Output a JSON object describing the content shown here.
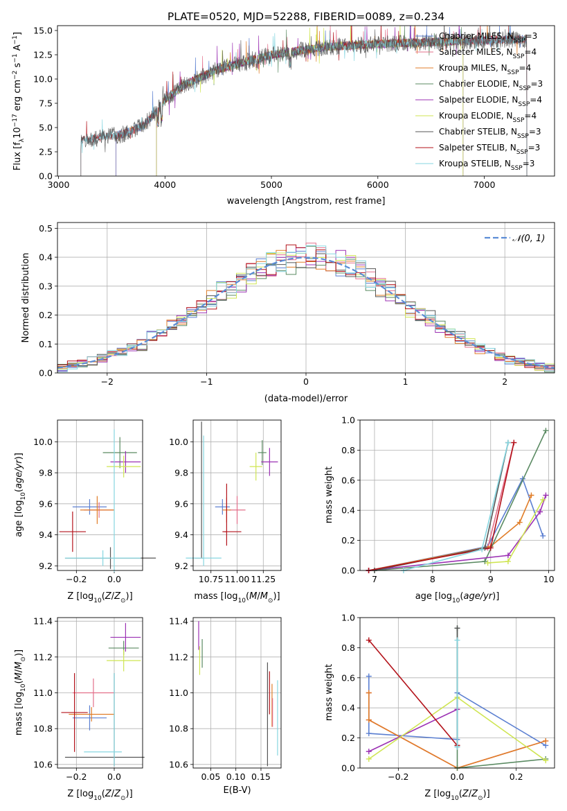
{
  "title": "PLATE=0520, MJD=52288, FIBERID=0089, z=0.234",
  "legend_models": [
    {
      "name": "Chabrier MILES, N",
      "sub": "SSP",
      "tail": "=3",
      "color": "#5b7fd1"
    },
    {
      "name": "Salpeter MILES, N",
      "sub": "SSP",
      "tail": "=4",
      "color": "#e36f8a"
    },
    {
      "name": "Kroupa MILES, N",
      "sub": "SSP",
      "tail": "=4",
      "color": "#e07d28"
    },
    {
      "name": "Chabrier ELODIE, N",
      "sub": "SSP",
      "tail": "=3",
      "color": "#5a8a62"
    },
    {
      "name": "Salpeter ELODIE, N",
      "sub": "SSP",
      "tail": "=4",
      "color": "#9b30b3"
    },
    {
      "name": "Kroupa ELODIE, N",
      "sub": "SSP",
      "tail": "=4",
      "color": "#cfe552"
    },
    {
      "name": "Chabrier STELIB, N",
      "sub": "SSP",
      "tail": "=3",
      "color": "#555555"
    },
    {
      "name": "Salpeter STELIB, N",
      "sub": "SSP",
      "tail": "=3",
      "color": "#b3121a"
    },
    {
      "name": "Kroupa STELIB, N",
      "sub": "SSP",
      "tail": "=3",
      "color": "#86d6e0"
    }
  ],
  "hist_legend": "𝒩(0, 1)",
  "hist_legend_color": "#5b8cd6",
  "chart_data": [
    {
      "id": "spectrum",
      "type": "line",
      "xlabel": "wavelength [Angstrom, rest frame]",
      "ylabel": "Flux [f_λ10^-17 erg cm^-2 s^-1 A^-1]",
      "xlim": [
        2990,
        7660
      ],
      "ylim": [
        0,
        15.5
      ],
      "xticks": [
        3000,
        4000,
        5000,
        6000,
        7000
      ],
      "yticks": [
        0.0,
        2.5,
        5.0,
        7.5,
        10.0,
        12.5,
        15.0
      ],
      "grid": false,
      "legend_position": "top-right",
      "continuum_knots_x": [
        3200,
        3400,
        3600,
        3800,
        3900,
        4000,
        4200,
        4500,
        5000,
        5500,
        6000,
        6500,
        7000,
        7400
      ],
      "continuum_knots_y": [
        3.6,
        4.0,
        4.3,
        5.2,
        6.4,
        7.9,
        9.5,
        11.0,
        12.5,
        13.3,
        13.6,
        13.8,
        14.0,
        14.1
      ],
      "series_ranges": [
        {
          "name": "Chabrier MILES",
          "x": [
            3540,
            7400
          ]
        },
        {
          "name": "Salpeter MILES",
          "x": [
            3540,
            7400
          ]
        },
        {
          "name": "Kroupa MILES",
          "x": [
            3540,
            7400
          ]
        },
        {
          "name": "Chabrier ELODIE",
          "x": [
            3920,
            6800
          ]
        },
        {
          "name": "Salpeter ELODIE",
          "x": [
            3920,
            6800
          ]
        },
        {
          "name": "Kroupa ELODIE",
          "x": [
            3920,
            6800
          ]
        },
        {
          "name": "Chabrier STELIB",
          "x": [
            3210,
            7400
          ]
        },
        {
          "name": "Salpeter STELIB",
          "x": [
            3210,
            7400
          ]
        },
        {
          "name": "Kroupa STELIB",
          "x": [
            3210,
            7400
          ]
        }
      ]
    },
    {
      "id": "residuals",
      "type": "line",
      "xlabel": "(data-model)/error",
      "ylabel": "Normed distribution",
      "xlim": [
        -2.5,
        2.5
      ],
      "ylim": [
        0,
        0.52
      ],
      "xticks": [
        -2,
        -1,
        0,
        1,
        2
      ],
      "yticks": [
        0.0,
        0.1,
        0.2,
        0.3,
        0.4,
        0.5
      ],
      "grid": true,
      "legend_position": "top-right",
      "bin_edges": [
        -2.5,
        2.5
      ],
      "n_bins": 50,
      "gaussian": {
        "mean": 0,
        "sigma": 1
      }
    },
    {
      "id": "age-vs-Z",
      "type": "scatter",
      "xlabel": "Z [log10(Z/Z⊙)]",
      "ylabel": "age  [log10(age/yr)]",
      "xlim": [
        -0.3,
        0.15
      ],
      "ylim": [
        9.17,
        10.14
      ],
      "xticks": [
        -0.2,
        0.0
      ],
      "yticks": [
        9.2,
        9.4,
        9.6,
        9.8,
        10.0
      ],
      "grid": true,
      "points": [
        {
          "x": -0.13,
          "y": 9.58,
          "xerr": 0.09,
          "yerr": 0.05,
          "series": 0
        },
        {
          "x": -0.08,
          "y": 9.56,
          "xerr": 0.08,
          "yerr": 0.05,
          "series": 1
        },
        {
          "x": -0.09,
          "y": 9.56,
          "xerr": 0.09,
          "yerr": 0.09,
          "series": 2
        },
        {
          "x": 0.03,
          "y": 9.93,
          "xerr": 0.09,
          "yerr": 0.1,
          "series": 3
        },
        {
          "x": 0.06,
          "y": 9.87,
          "xerr": 0.08,
          "yerr": 0.07,
          "series": 4
        },
        {
          "x": 0.05,
          "y": 9.84,
          "xerr": 0.09,
          "yerr": 0.07,
          "series": 5
        },
        {
          "x": -0.02,
          "y": 9.25,
          "xerr": 0.24,
          "yerr": 0.07,
          "series": 6
        },
        {
          "x": -0.22,
          "y": 9.42,
          "xerr": 0.07,
          "yerr": 0.13,
          "series": 7
        },
        {
          "x": -0.06,
          "y": 9.25,
          "xerr": 0.2,
          "yerr": 0.05,
          "series": 8
        },
        {
          "x": 0.0,
          "y": 9.62,
          "xerr": 0.0,
          "yerr": 0.46,
          "series": 8
        }
      ]
    },
    {
      "id": "age-vs-mass",
      "type": "scatter",
      "xlabel": "mass [log10(M/M⊙)]",
      "ylabel": "",
      "xlim": [
        10.58,
        11.42
      ],
      "ylim": [
        9.17,
        10.14
      ],
      "xticks": [
        10.75,
        11.0,
        11.25
      ],
      "yticks": [
        9.2,
        9.4,
        9.6,
        9.8,
        10.0
      ],
      "grid": true,
      "points": [
        {
          "x": 10.86,
          "y": 9.58,
          "xerr": 0.07,
          "yerr": 0.05,
          "series": 0
        },
        {
          "x": 11.0,
          "y": 9.56,
          "xerr": 0.08,
          "yerr": 0.09,
          "series": 1
        },
        {
          "x": 10.9,
          "y": 9.56,
          "xerr": 0.04,
          "yerr": 0.08,
          "series": 2
        },
        {
          "x": 11.24,
          "y": 9.93,
          "xerr": 0.04,
          "yerr": 0.08,
          "series": 3
        },
        {
          "x": 11.31,
          "y": 9.87,
          "xerr": 0.08,
          "yerr": 0.09,
          "series": 4
        },
        {
          "x": 11.18,
          "y": 9.84,
          "xerr": 0.06,
          "yerr": 0.09,
          "series": 5
        },
        {
          "x": 10.64,
          "y": 9.25,
          "xerr": 0.04,
          "yerr": 0.0,
          "series": 6
        },
        {
          "x": 10.66,
          "y": 9.69,
          "xerr": 0.0,
          "yerr": 0.44,
          "series": 6
        },
        {
          "x": 10.88,
          "y": 9.42,
          "xerr": 0.02,
          "yerr": 0.0,
          "series": 7
        },
        {
          "x": 10.96,
          "y": 9.42,
          "xerr": 0.08,
          "yerr": 0.0,
          "series": 7
        },
        {
          "x": 10.9,
          "y": 9.53,
          "xerr": 0.0,
          "yerr": 0.2,
          "series": 7
        },
        {
          "x": 10.68,
          "y": 9.25,
          "xerr": 0.17,
          "yerr": 0.0,
          "series": 8
        },
        {
          "x": 10.68,
          "y": 9.62,
          "xerr": 0.0,
          "yerr": 0.42,
          "series": 8
        }
      ]
    },
    {
      "id": "mass-weight-vs-age",
      "type": "line",
      "xlabel": "age  [log10(age/yr)]",
      "ylabel": "mass weight",
      "xlim": [
        6.75,
        10.1
      ],
      "ylim": [
        0,
        1.0
      ],
      "xticks": [
        7,
        8,
        9,
        10
      ],
      "yticks": [
        0.0,
        0.2,
        0.4,
        0.6,
        0.8,
        1.0
      ],
      "grid": true,
      "series": [
        {
          "series": 0,
          "x": [
            6.9,
            8.95,
            9.55,
            9.9
          ],
          "y": [
            0.0,
            0.16,
            0.61,
            0.23
          ]
        },
        {
          "series": 1,
          "x": [
            6.9,
            8.95,
            9.4
          ],
          "y": [
            0.0,
            0.15,
            0.85
          ]
        },
        {
          "series": 2,
          "x": [
            6.9,
            9.0,
            9.5,
            9.7
          ],
          "y": [
            0.0,
            0.16,
            0.32,
            0.5
          ]
        },
        {
          "series": 3,
          "x": [
            7.0,
            8.9,
            9.95
          ],
          "y": [
            0.0,
            0.06,
            0.93
          ]
        },
        {
          "series": 4,
          "x": [
            6.9,
            9.3,
            9.85,
            9.95
          ],
          "y": [
            0.0,
            0.1,
            0.39,
            0.5
          ]
        },
        {
          "series": 5,
          "x": [
            8.95,
            9.3,
            9.9
          ],
          "y": [
            0.05,
            0.06,
            0.47
          ]
        },
        {
          "series": 6,
          "x": [
            7.0,
            8.9,
            9.3
          ],
          "y": [
            0.0,
            0.15,
            0.85
          ]
        },
        {
          "series": 7,
          "x": [
            6.9,
            9.0,
            9.4
          ],
          "y": [
            0.0,
            0.15,
            0.85
          ]
        },
        {
          "series": 8,
          "x": [
            7.5,
            8.85,
            9.3
          ],
          "y": [
            0.0,
            0.14,
            0.85
          ]
        }
      ]
    },
    {
      "id": "mass-vs-Z",
      "type": "scatter",
      "xlabel": "Z [log10(Z/Z⊙)]",
      "ylabel": "mass [log10(M/M⊙)]",
      "xlim": [
        -0.3,
        0.15
      ],
      "ylim": [
        10.58,
        11.42
      ],
      "xticks": [
        -0.2,
        0.0
      ],
      "yticks": [
        10.6,
        10.8,
        11.0,
        11.2,
        11.4
      ],
      "grid": true,
      "points": [
        {
          "x": -0.13,
          "y": 10.86,
          "xerr": 0.09,
          "yerr": 0.07,
          "series": 0
        },
        {
          "x": -0.11,
          "y": 11.0,
          "xerr": 0.11,
          "yerr": 0.08,
          "series": 1
        },
        {
          "x": -0.12,
          "y": 10.88,
          "xerr": 0.12,
          "yerr": 0.04,
          "series": 2
        },
        {
          "x": 0.05,
          "y": 11.25,
          "xerr": 0.08,
          "yerr": 0.04,
          "series": 3
        },
        {
          "x": 0.06,
          "y": 11.31,
          "xerr": 0.08,
          "yerr": 0.08,
          "series": 4
        },
        {
          "x": 0.05,
          "y": 11.18,
          "xerr": 0.09,
          "yerr": 0.06,
          "series": 5
        },
        {
          "x": -0.05,
          "y": 10.64,
          "xerr": 0.21,
          "yerr": 0.0,
          "series": 6
        },
        {
          "x": 0.0,
          "y": 10.85,
          "xerr": 0.0,
          "yerr": 0.26,
          "series": 6
        },
        {
          "x": -0.21,
          "y": 10.89,
          "xerr": 0.07,
          "yerr": 0.22,
          "series": 7
        },
        {
          "x": -0.06,
          "y": 10.67,
          "xerr": 0.1,
          "yerr": 0.0,
          "series": 8
        },
        {
          "x": 0.0,
          "y": 10.85,
          "xerr": 0.0,
          "yerr": 0.26,
          "series": 8
        }
      ]
    },
    {
      "id": "mass-vs-EBV",
      "type": "scatter",
      "xlabel": "E(B-V)",
      "ylabel": "",
      "xlim": [
        0.015,
        0.19
      ],
      "ylim": [
        10.58,
        11.42
      ],
      "xticks": [
        0.05,
        0.1,
        0.15
      ],
      "yticks": [
        10.6,
        10.8,
        11.0,
        11.2,
        11.4
      ],
      "grid": true,
      "points": [
        {
          "x": 0.033,
          "y": 11.22,
          "xerr": 0.0,
          "yerr": 0.08,
          "series": 3
        },
        {
          "x": 0.026,
          "y": 11.32,
          "xerr": 0.0,
          "yerr": 0.08,
          "series": 4
        },
        {
          "x": 0.028,
          "y": 11.18,
          "xerr": 0.0,
          "yerr": 0.08,
          "series": 5
        },
        {
          "x": 0.163,
          "y": 10.88,
          "xerr": 0.0,
          "yerr": 0.29,
          "series": 6
        },
        {
          "x": 0.167,
          "y": 11.0,
          "xerr": 0.0,
          "yerr": 0.12,
          "series": 7
        },
        {
          "x": 0.172,
          "y": 10.93,
          "xerr": 0.0,
          "yerr": 0.12,
          "series": 2
        },
        {
          "x": 0.183,
          "y": 10.86,
          "xerr": 0.0,
          "yerr": 0.21,
          "series": 8
        },
        {
          "x": 0.173,
          "y": 10.89,
          "xerr": 0.0,
          "yerr": 0.08,
          "series": 1
        }
      ]
    },
    {
      "id": "mass-weight-vs-Z",
      "type": "line",
      "xlabel": "Z [log10(Z/Z⊙)]",
      "ylabel": "mass weight",
      "xlim": [
        -0.33,
        0.33
      ],
      "ylim": [
        0,
        1.0
      ],
      "xticks": [
        -0.2,
        0.0,
        0.2
      ],
      "yticks": [
        0.0,
        0.2,
        0.4,
        0.6,
        0.8,
        1.0
      ],
      "grid": true,
      "series": [
        {
          "series": 0,
          "x": [
            -0.3,
            -0.3,
            0.0,
            0.0,
            0.3
          ],
          "y": [
            0.61,
            0.23,
            0.19,
            0.5,
            0.15
          ]
        },
        {
          "series": 1,
          "x": [
            -0.3,
            -0.3,
            0.0,
            0.3
          ],
          "y": [
            0.5,
            0.32,
            0.0,
            0.18
          ]
        },
        {
          "series": 2,
          "x": [
            -0.3,
            -0.3,
            0.0,
            0.3
          ],
          "y": [
            0.5,
            0.32,
            0.0,
            0.18
          ]
        },
        {
          "series": 3,
          "x": [
            0.0,
            0.0,
            0.3
          ],
          "y": [
            0.93,
            0.0,
            0.06
          ]
        },
        {
          "series": 4,
          "x": [
            -0.3,
            0.0
          ],
          "y": [
            0.11,
            0.39
          ]
        },
        {
          "series": 5,
          "x": [
            -0.3,
            0.0,
            0.3
          ],
          "y": [
            0.06,
            0.47,
            0.05
          ]
        },
        {
          "series": 6,
          "x": [
            0.0,
            0.0
          ],
          "y": [
            0.93,
            0.15
          ]
        },
        {
          "series": 7,
          "x": [
            -0.3,
            0.0
          ],
          "y": [
            0.85,
            0.15
          ]
        },
        {
          "series": 8,
          "x": [
            0.0,
            0.0
          ],
          "y": [
            0.85,
            0.14
          ]
        }
      ]
    }
  ]
}
